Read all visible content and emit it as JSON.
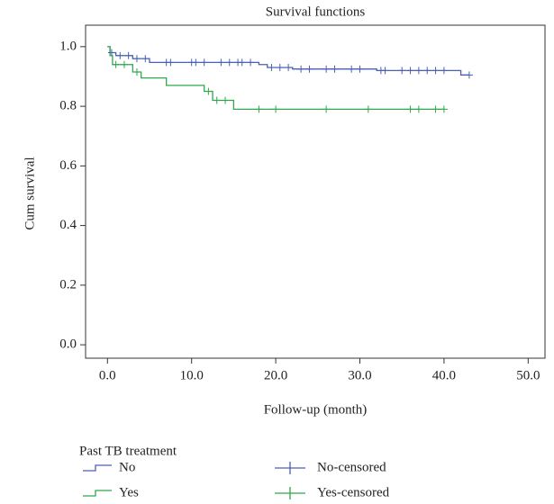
{
  "chart_data": {
    "type": "step",
    "title": "Survival functions",
    "x_label": "Follow-up (month)",
    "y_label": "Cum survival",
    "legend_title": "Past TB treatment",
    "xlim": [
      -2.6,
      52
    ],
    "ylim": [
      -0.045,
      1.072
    ],
    "xticks": [
      {
        "value": 0,
        "label": "0.0"
      },
      {
        "value": 10,
        "label": "10.0"
      },
      {
        "value": 20,
        "label": "20.0"
      },
      {
        "value": 30,
        "label": "30.0"
      },
      {
        "value": 40,
        "label": "40.0"
      },
      {
        "value": 50,
        "label": "50.0"
      }
    ],
    "yticks": [
      {
        "value": 0,
        "label": "0.0"
      },
      {
        "value": 0.2,
        "label": "0.2"
      },
      {
        "value": 0.4,
        "label": "0.4"
      },
      {
        "value": 0.6,
        "label": "0.6"
      },
      {
        "value": 0.8,
        "label": "0.8"
      },
      {
        "value": 1,
        "label": "1.0"
      }
    ],
    "series": [
      {
        "name": "No",
        "color": "#4a60b4",
        "style": "step",
        "x": [
          0,
          0.3,
          1,
          3,
          5,
          18,
          19,
          22,
          32,
          42,
          43
        ],
        "values": [
          1.0,
          0.98,
          0.97,
          0.96,
          0.947,
          0.94,
          0.93,
          0.925,
          0.92,
          0.905,
          0.905
        ]
      },
      {
        "name": "Yes",
        "color": "#2fa84a",
        "style": "step",
        "x": [
          0,
          0.3,
          0.6,
          3,
          4,
          7,
          11.5,
          12.5,
          15,
          40
        ],
        "values": [
          1.0,
          0.97,
          0.94,
          0.915,
          0.895,
          0.87,
          0.85,
          0.82,
          0.79,
          0.79
        ]
      },
      {
        "name": "No-censored",
        "color": "#4a60b4",
        "style": "plus",
        "x": [
          0.5,
          1.5,
          2.5,
          3.5,
          4.5,
          7,
          7.5,
          10,
          10.5,
          11.5,
          13.5,
          14.5,
          15.5,
          16,
          17,
          19.5,
          20.5,
          21.5,
          23,
          24,
          26,
          27,
          29,
          30,
          32.5,
          33,
          35,
          36,
          37,
          38,
          39,
          40,
          43
        ],
        "values": [
          0.98,
          0.97,
          0.97,
          0.96,
          0.96,
          0.947,
          0.947,
          0.947,
          0.947,
          0.947,
          0.947,
          0.947,
          0.947,
          0.947,
          0.947,
          0.93,
          0.93,
          0.93,
          0.925,
          0.925,
          0.925,
          0.925,
          0.925,
          0.925,
          0.92,
          0.92,
          0.92,
          0.92,
          0.92,
          0.92,
          0.92,
          0.92,
          0.905
        ]
      },
      {
        "name": "Yes-censored",
        "color": "#2fa84a",
        "style": "plus",
        "x": [
          1,
          2,
          3.5,
          12,
          13,
          14,
          18,
          20,
          26,
          31,
          36,
          37,
          39,
          40
        ],
        "values": [
          0.94,
          0.94,
          0.915,
          0.85,
          0.82,
          0.82,
          0.79,
          0.79,
          0.79,
          0.79,
          0.79,
          0.79,
          0.79,
          0.79
        ]
      }
    ]
  }
}
